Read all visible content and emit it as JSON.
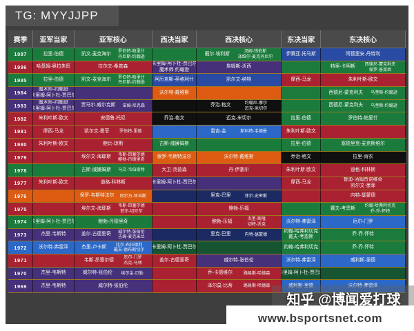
{
  "tg_label": "TG: MYYJJPP",
  "watermark": {
    "zhihu": "知乎 @博闻爱打球",
    "site": "www.bsportsnet.com"
  },
  "colors": {
    "g": "#1b7b3c",
    "dg": "#175432",
    "r": "#aa2231",
    "p": "#453079",
    "b": "#2a4ba3",
    "lb": "#2b68c8",
    "o": "#dd5c12",
    "k": "#101010",
    "n": "#1b2a63",
    "header_bg": "#4a4a4a",
    "panel_bg": "#3e3e3e",
    "separator": "#9c7a1c"
  },
  "header": {
    "cols": [
      "赛季",
      "亚军当家",
      "亚军核心",
      "西决当家",
      "西决核心",
      "东决当家",
      "东决核心"
    ]
  },
  "rows": [
    {
      "year": "1987",
      "c": "g",
      "cells": [
        {
          "c": "g",
          "t": [
            "拉里-伯德"
          ]
        },
        {
          "c": "g",
          "t": [
            "凯文-麦克海尔"
          ],
          "p": [
            "罗伯特-帕里什",
            "丹尼斯-约翰逊"
          ]
        },
        {
          "c": "g",
          "t": []
        },
        {
          "c": "g",
          "t": [
            "戴尔-埃利斯"
          ],
          "p": [
            "汤姆-钱伯斯",
            "泽维尔-麦克丹尼尔"
          ]
        },
        {
          "c": "b",
          "t": [
            "伊赛亚-托马斯"
          ]
        },
        {
          "c": "b",
          "t": [
            "阿德里安-丹特利"
          ]
        }
      ]
    },
    {
      "year": "1986",
      "c": "r",
      "cells": [
        {
          "c": "r",
          "t": [
            "哈基姆-奥拉朱旺"
          ]
        },
        {
          "c": "r",
          "t": [
            "拉尔夫-桑普森"
          ]
        },
        {
          "c": "p",
          "t": [
            "卡里姆-阿卜杜-贾巴尔",
            "魔术师-约翰逊"
          ]
        },
        {
          "c": "p",
          "t": [
            "詹姆斯-沃西"
          ]
        },
        {
          "c": "g",
          "t": []
        },
        {
          "c": "g",
          "t": [
            "特里-卡明斯"
          ],
          "p": [
            "西德尼-蒙克利夫",
            "保罗-普莱西"
          ]
        }
      ]
    },
    {
      "year": "1985",
      "c": "g",
      "cells": [
        {
          "c": "g",
          "t": [
            "拉里-伯德"
          ]
        },
        {
          "c": "g",
          "t": [
            "凯文-麦克海尔"
          ],
          "p": [
            "罗伯特-帕里什",
            "丹尼斯-约翰逊"
          ]
        },
        {
          "c": "b",
          "t": [
            "阿历克斯-英格利什"
          ]
        },
        {
          "c": "b",
          "t": [
            "凯尔文-纳特"
          ]
        },
        {
          "c": "r",
          "t": [
            "摩西-马龙"
          ]
        },
        {
          "c": "r",
          "t": [
            "朱利叶斯-欧文"
          ]
        }
      ]
    },
    {
      "year": "1984",
      "c": "p",
      "cells": [
        {
          "c": "p",
          "t": [
            "魔术师-约翰逊",
            "卡里姆-阿卜杜-贾巴尔"
          ]
        },
        {
          "c": "p",
          "t": []
        },
        {
          "c": "o",
          "t": [
            "沃尔特-戴维斯"
          ]
        },
        {
          "c": "o",
          "t": []
        },
        {
          "c": "g",
          "t": []
        },
        {
          "c": "g",
          "t": [
            "西德尼-蒙克利夫"
          ],
          "p": [
            "马奎斯-约翰逊"
          ]
        }
      ]
    },
    {
      "year": "1983",
      "c": "p",
      "cells": [
        {
          "c": "p",
          "t": [
            "魔术师-约翰逊",
            "卡里姆-阿卜杜-贾巴尔"
          ]
        },
        {
          "c": "p",
          "t": [
            "贾马尔-威尔克斯"
          ],
          "p": [
            "诺姆-尼克森"
          ]
        },
        {
          "c": "k",
          "t": []
        },
        {
          "c": "k",
          "t": [
            "乔治-格文"
          ],
          "p": [
            "约翰尼-摩尔",
            "迈克-米切尔"
          ]
        },
        {
          "c": "g",
          "t": []
        },
        {
          "c": "g",
          "t": [
            "西德尼-蒙克利夫"
          ],
          "p": [
            "马奎斯-约翰逊"
          ]
        }
      ]
    },
    {
      "year": "1982",
      "c": "r",
      "cells": [
        {
          "c": "r",
          "t": [
            "朱利叶斯-欧文"
          ]
        },
        {
          "c": "r",
          "t": [
            "安德鲁-托尼"
          ]
        },
        {
          "c": "k",
          "t": [
            "乔治-格文"
          ]
        },
        {
          "c": "k",
          "t": [
            "迈克-米切尔"
          ]
        },
        {
          "c": "g",
          "t": [
            "拉里-伯德"
          ]
        },
        {
          "c": "g",
          "t": [
            "罗伯特-帕里什"
          ]
        }
      ]
    },
    {
      "year": "1981",
      "c": "r",
      "cells": [
        {
          "c": "r",
          "t": [
            "摩西-马龙"
          ]
        },
        {
          "c": "r",
          "t": [
            "凯尔文-墨菲"
          ],
          "p": [
            "罗伯特-里德"
          ]
        },
        {
          "c": "lb",
          "t": []
        },
        {
          "c": "lb",
          "t": [
            "雷吉-金"
          ],
          "p": [
            "斯科特-韦德曼"
          ]
        },
        {
          "c": "r",
          "t": [
            "朱利叶斯-欧文"
          ]
        },
        {
          "c": "r",
          "t": []
        }
      ]
    },
    {
      "year": "1980",
      "c": "r",
      "cells": [
        {
          "c": "r",
          "t": [
            "朱利叶斯-欧文"
          ]
        },
        {
          "c": "r",
          "t": [
            "鲍比-琼斯"
          ]
        },
        {
          "c": "g",
          "t": [
            "古斯-威廉姆斯"
          ]
        },
        {
          "c": "g",
          "t": []
        },
        {
          "c": "g",
          "t": [
            "拉里-伯德"
          ]
        },
        {
          "c": "g",
          "t": [
            "塞德里克-麦克斯维尔"
          ]
        }
      ]
    },
    {
      "year": "1979",
      "c": "r",
      "cells": [
        {
          "c": "r",
          "t": []
        },
        {
          "c": "r",
          "t": [
            "埃尔文-海耶斯"
          ],
          "p": [
            "韦斯-昂塞尔德",
            "鲍勃-丹德里奇"
          ]
        },
        {
          "c": "o",
          "t": [
            "保罗-韦斯特法尔"
          ]
        },
        {
          "c": "o",
          "t": [
            "沃尔特-戴维斯"
          ]
        },
        {
          "c": "k",
          "t": [
            "乔治-格文"
          ]
        },
        {
          "c": "k",
          "t": [
            "拉里-肯农"
          ]
        }
      ]
    },
    {
      "year": "1978",
      "c": "g",
      "cells": [
        {
          "c": "g",
          "t": []
        },
        {
          "c": "g",
          "t": [
            "古斯-威廉姆斯"
          ],
          "p": [
            "马文-韦伯斯特"
          ]
        },
        {
          "c": "r",
          "t": [
            "大卫-汤普森"
          ]
        },
        {
          "c": "r",
          "t": [
            "丹-伊塞尔"
          ]
        },
        {
          "c": "r",
          "t": [
            "朱利叶斯-欧文"
          ]
        },
        {
          "c": "r",
          "t": [
            "道格-科林斯"
          ]
        }
      ]
    },
    {
      "year": "1977",
      "c": "r",
      "cells": [
        {
          "c": "r",
          "t": [
            "朱利叶斯-欧文"
          ]
        },
        {
          "c": "r",
          "t": [
            "道格-科林斯"
          ]
        },
        {
          "c": "p",
          "t": [
            "卡里姆-阿卜杜-贾巴尔"
          ]
        },
        {
          "c": "p",
          "t": []
        },
        {
          "c": "r",
          "t": [
            "摩西-马龙"
          ]
        },
        {
          "c": "r",
          "t": [
            "鲁迪-汤姆贾诺维奇",
            "凯尔文-墨菲"
          ]
        }
      ]
    },
    {
      "year": "1976",
      "c": "o",
      "cells": [
        {
          "c": "o",
          "t": []
        },
        {
          "c": "o",
          "t": [
            "保罗-韦斯特法尔"
          ],
          "p": [
            "阿尔万-亚当斯"
          ]
        },
        {
          "c": "n",
          "t": []
        },
        {
          "c": "n",
          "t": [
            "里克-巴里"
          ],
          "p": [
            "菲尔-史密斯"
          ]
        },
        {
          "c": "r",
          "t": []
        },
        {
          "c": "r",
          "t": [
            "内特-瑟蒙德"
          ]
        }
      ]
    },
    {
      "year": "1975",
      "c": "r",
      "cells": [
        {
          "c": "r",
          "t": []
        },
        {
          "c": "r",
          "t": [
            "埃尔文-海耶斯"
          ],
          "p": [
            "韦斯-昂塞尔德",
            "菲尔-切尼尔"
          ]
        },
        {
          "c": "r",
          "t": []
        },
        {
          "c": "r",
          "t": [
            "鲍勃-乐福"
          ]
        },
        {
          "c": "g",
          "t": []
        },
        {
          "c": "g",
          "t": [
            "戴夫-考恩斯"
          ],
          "p": [
            "约翰-哈弗利切克",
            "乔-乔-怀特"
          ]
        }
      ]
    },
    {
      "year": "1974",
      "c": "g",
      "cells": [
        {
          "c": "g",
          "t": [
            "卡里姆-阿卜杜-贾巴尔"
          ]
        },
        {
          "c": "g",
          "t": [
            "鲍勃-丹德里奇"
          ]
        },
        {
          "c": "r",
          "t": []
        },
        {
          "c": "r",
          "t": [
            "鲍勃-乐福"
          ],
          "p": [
            "杰里-斯隆",
            "切特-沃克"
          ]
        },
        {
          "c": "lb",
          "t": [
            "沃尔特-弗雷泽"
          ]
        },
        {
          "c": "lb",
          "t": [
            "厄尔-门罗"
          ]
        }
      ]
    },
    {
      "year": "1973",
      "c": "p",
      "cells": [
        {
          "c": "p",
          "t": [
            "杰里-韦斯特"
          ]
        },
        {
          "c": "p",
          "t": [
            "盖尔-古德里奇"
          ],
          "p": [
            "威尔特-张伯伦",
            "吉姆-麦克米兰"
          ]
        },
        {
          "c": "n",
          "t": []
        },
        {
          "c": "n",
          "t": [
            "里克-巴里"
          ],
          "p": [
            "内特-瑟蒙德"
          ]
        },
        {
          "c": "g",
          "t": [
            "约翰-哈弗利切克",
            "戴夫-考恩斯"
          ]
        },
        {
          "c": "g",
          "t": [
            "乔-乔-怀特"
          ]
        }
      ]
    },
    {
      "year": "1972",
      "c": "lb",
      "cells": [
        {
          "c": "lb",
          "t": [
            "沃尔特-弗雷泽"
          ]
        },
        {
          "c": "lb",
          "t": [
            "杰里-卢卡斯"
          ],
          "p": [
            "比尔-布拉德利",
            "戴夫-德布斯切尔"
          ]
        },
        {
          "c": "dg",
          "t": [
            "卡里姆-阿卜杜-贾巴尔"
          ]
        },
        {
          "c": "dg",
          "t": []
        },
        {
          "c": "g",
          "t": [
            "约翰-哈弗利切克"
          ]
        },
        {
          "c": "g",
          "t": [
            "乔-乔-怀特"
          ]
        }
      ]
    },
    {
      "year": "1971",
      "c": "r",
      "cells": [
        {
          "c": "r",
          "t": []
        },
        {
          "c": "r",
          "t": [
            "韦斯-昂塞尔德"
          ],
          "p": [
            "厄尔-门罗",
            "杰克-马林"
          ]
        },
        {
          "c": "r",
          "t": [
            "盖尔-古德里奇"
          ]
        },
        {
          "c": "p",
          "t": [
            "威尔特-张伯伦"
          ]
        },
        {
          "c": "lb",
          "t": [
            "沃尔特-弗雷泽"
          ]
        },
        {
          "c": "lb",
          "t": [
            "威利斯-里德"
          ]
        }
      ]
    },
    {
      "year": "1970",
      "c": "p",
      "cells": [
        {
          "c": "p",
          "t": [
            "杰里-韦斯特"
          ]
        },
        {
          "c": "p",
          "t": [
            "威尔特-张伯伦"
          ],
          "p": [
            "埃尔金-贝勒"
          ]
        },
        {
          "c": "r",
          "t": []
        },
        {
          "c": "r",
          "t": [
            "乔-卡德维尔"
          ],
          "p": [
            "路易斯-哈德森"
          ]
        },
        {
          "c": "dg",
          "t": [
            "卡里姆-阿卜杜-贾巴尔"
          ]
        },
        {
          "c": "dg",
          "t": []
        }
      ]
    },
    {
      "year": "1969",
      "c": "p",
      "cells": [
        {
          "c": "p",
          "t": [
            "杰里-韦斯特"
          ]
        },
        {
          "c": "p",
          "t": [
            "威尔特-张伯伦"
          ]
        },
        {
          "c": "r",
          "t": []
        },
        {
          "c": "r",
          "t": [
            "泽尔莫-比蒂"
          ],
          "p": [
            "路易斯-哈德森"
          ]
        },
        {
          "c": "lb",
          "t": [
            "威利斯-里德"
          ]
        },
        {
          "c": "lb",
          "t": [
            "沃尔特-弗雷泽"
          ]
        }
      ]
    }
  ]
}
